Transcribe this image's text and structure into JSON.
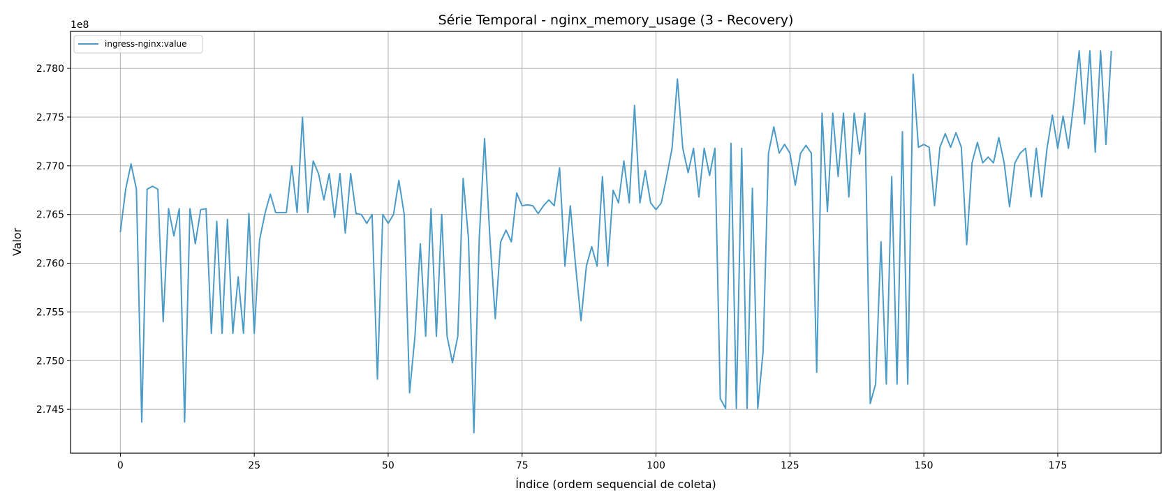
{
  "chart_data": {
    "type": "line",
    "title": "Série Temporal - nginx_memory_usage (3 - Recovery)",
    "xlabel": "Índice (ordem sequencial de coleta)",
    "ylabel": "Valor",
    "y_offset_text": "1e8",
    "xlim": [
      -9.3,
      194.3
    ],
    "ylim": [
      2.7405,
      2.7838
    ],
    "x_ticks": [
      0,
      25,
      50,
      75,
      100,
      125,
      150,
      175
    ],
    "y_ticks": [
      2.745,
      2.75,
      2.755,
      2.76,
      2.765,
      2.77,
      2.775,
      2.78
    ],
    "y_tick_labels": [
      "2.745",
      "2.750",
      "2.755",
      "2.760",
      "2.765",
      "2.770",
      "2.775",
      "2.780"
    ],
    "grid": true,
    "legend_position": "top-left",
    "line_color": "#4a9bc8",
    "series": [
      {
        "name": "ingress-nginx:value",
        "values": [
          2.7632,
          2.7676,
          2.7702,
          2.7676,
          2.7437,
          2.7676,
          2.7679,
          2.7676,
          2.754,
          2.7656,
          2.7628,
          2.7656,
          2.7437,
          2.7656,
          2.762,
          2.7655,
          2.7656,
          2.7528,
          2.7643,
          2.7528,
          2.7645,
          2.7528,
          2.7586,
          2.7528,
          2.7651,
          2.7528,
          2.7624,
          2.7651,
          2.7671,
          2.7652,
          2.7652,
          2.7652,
          2.77,
          2.7652,
          2.775,
          2.7652,
          2.7705,
          2.7692,
          2.7665,
          2.7692,
          2.7647,
          2.7692,
          2.7631,
          2.7692,
          2.7651,
          2.765,
          2.7641,
          2.765,
          2.7481,
          2.765,
          2.7641,
          2.765,
          2.7685,
          2.765,
          2.7467,
          2.7525,
          2.762,
          2.7525,
          2.7656,
          2.7525,
          2.765,
          2.7525,
          2.7498,
          2.7525,
          2.7687,
          2.7625,
          2.7426,
          2.7625,
          2.7728,
          2.7625,
          2.7543,
          2.7622,
          2.7634,
          2.7622,
          2.7672,
          2.7659,
          2.766,
          2.7659,
          2.7651,
          2.7659,
          2.7665,
          2.7659,
          2.7698,
          2.7597,
          2.7659,
          2.7597,
          2.7541,
          2.7597,
          2.7617,
          2.7597,
          2.7689,
          2.7597,
          2.7675,
          2.7662,
          2.7705,
          2.7662,
          2.7762,
          2.7662,
          2.7695,
          2.7662,
          2.7655,
          2.7662,
          2.7689,
          2.7718,
          2.7789,
          2.7718,
          2.7693,
          2.7718,
          2.7668,
          2.7718,
          2.769,
          2.7718,
          2.7461,
          2.7451,
          2.7723,
          2.7451,
          2.7718,
          2.7451,
          2.7677,
          2.7451,
          2.751,
          2.7713,
          2.774,
          2.7713,
          2.7722,
          2.7713,
          2.768,
          2.7713,
          2.7721,
          2.7713,
          2.7488,
          2.7754,
          2.7653,
          2.7754,
          2.7689,
          2.7754,
          2.7668,
          2.7754,
          2.7712,
          2.7754,
          2.7456,
          2.7476,
          2.7622,
          2.7476,
          2.7689,
          2.7476,
          2.7735,
          2.7476,
          2.7794,
          2.7719,
          2.7722,
          2.7719,
          2.7659,
          2.7719,
          2.7733,
          2.7719,
          2.7734,
          2.7719,
          2.7619,
          2.7703,
          2.7724,
          2.7703,
          2.7709,
          2.7703,
          2.7729,
          2.7703,
          2.7658,
          2.7703,
          2.7713,
          2.7718,
          2.7668,
          2.7718,
          2.7668,
          2.7718,
          2.7752,
          2.7718,
          2.7751,
          2.7718,
          2.7765,
          2.7818,
          2.7743,
          2.7818,
          2.7714,
          2.7818,
          2.7722,
          2.7818
        ]
      }
    ]
  }
}
